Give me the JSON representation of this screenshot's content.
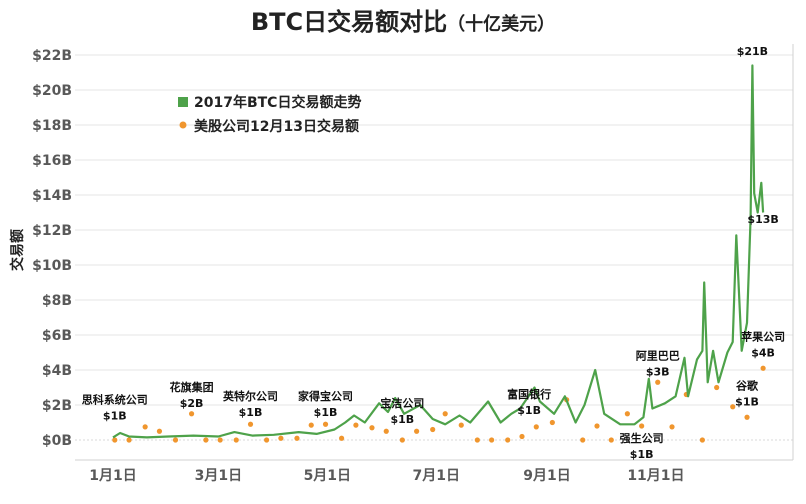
{
  "chart_data": {
    "type": "line",
    "title": "BTC日交易额对比",
    "title_unit": "（十亿美元）",
    "ylabel": "交易额",
    "xlabel": "",
    "ylim": [
      0,
      22
    ],
    "xlim": [
      "2017-01-01",
      "2017-12-31"
    ],
    "grid": true,
    "legend_placement": "top-left",
    "y_ticks": [
      "$0B",
      "$2B",
      "$4B",
      "$6B",
      "$8B",
      "$10B",
      "$12B",
      "$14B",
      "$16B",
      "$18B",
      "$20B",
      "$22B"
    ],
    "x_ticks": [
      {
        "date": "2017-01-01",
        "label": "1月1日"
      },
      {
        "date": "2017-03-01",
        "label": "3月1日"
      },
      {
        "date": "2017-05-01",
        "label": "5月1日"
      },
      {
        "date": "2017-07-01",
        "label": "7月1日"
      },
      {
        "date": "2017-09-01",
        "label": "9月1日"
      },
      {
        "date": "2017-11-01",
        "label": "11月1日"
      }
    ],
    "colors": {
      "btc": "#4ea24a",
      "stocks": "#f0962e",
      "grid": "#e6e6e6",
      "axis": "#d0d0d0"
    },
    "series": [
      {
        "name": "2017年BTC日交易额走势",
        "kind": "line",
        "points": [
          [
            "2017-01-01",
            0.15
          ],
          [
            "2017-01-05",
            0.4
          ],
          [
            "2017-01-10",
            0.2
          ],
          [
            "2017-01-20",
            0.15
          ],
          [
            "2017-02-01",
            0.2
          ],
          [
            "2017-02-15",
            0.25
          ],
          [
            "2017-03-01",
            0.2
          ],
          [
            "2017-03-10",
            0.45
          ],
          [
            "2017-03-20",
            0.25
          ],
          [
            "2017-04-01",
            0.3
          ],
          [
            "2017-04-15",
            0.45
          ],
          [
            "2017-04-25",
            0.35
          ],
          [
            "2017-05-05",
            0.6
          ],
          [
            "2017-05-11",
            1.0
          ],
          [
            "2017-05-16",
            1.4
          ],
          [
            "2017-05-22",
            1.0
          ],
          [
            "2017-05-30",
            2.1
          ],
          [
            "2017-06-04",
            1.6
          ],
          [
            "2017-06-08",
            2.4
          ],
          [
            "2017-06-13",
            1.5
          ],
          [
            "2017-06-22",
            2.0
          ],
          [
            "2017-06-29",
            1.2
          ],
          [
            "2017-07-06",
            0.9
          ],
          [
            "2017-07-14",
            1.4
          ],
          [
            "2017-07-20",
            1.0
          ],
          [
            "2017-07-30",
            2.2
          ],
          [
            "2017-08-06",
            1.0
          ],
          [
            "2017-08-12",
            1.5
          ],
          [
            "2017-08-17",
            1.8
          ],
          [
            "2017-08-25",
            3.0
          ],
          [
            "2017-08-28",
            2.2
          ],
          [
            "2017-09-05",
            1.5
          ],
          [
            "2017-09-11",
            2.5
          ],
          [
            "2017-09-17",
            1.0
          ],
          [
            "2017-09-22",
            2.0
          ],
          [
            "2017-09-28",
            4.0
          ],
          [
            "2017-10-03",
            1.5
          ],
          [
            "2017-10-12",
            0.9
          ],
          [
            "2017-10-20",
            0.9
          ],
          [
            "2017-10-25",
            1.3
          ],
          [
            "2017-10-28",
            3.5
          ],
          [
            "2017-10-30",
            1.8
          ],
          [
            "2017-11-06",
            2.1
          ],
          [
            "2017-11-12",
            2.5
          ],
          [
            "2017-11-17",
            4.7
          ],
          [
            "2017-11-19",
            2.5
          ],
          [
            "2017-11-24",
            4.6
          ],
          [
            "2017-11-27",
            5.1
          ],
          [
            "2017-11-28",
            9.0
          ],
          [
            "2017-11-30",
            3.3
          ],
          [
            "2017-12-03",
            5.1
          ],
          [
            "2017-12-06",
            3.3
          ],
          [
            "2017-12-11",
            5.0
          ],
          [
            "2017-12-14",
            5.6
          ],
          [
            "2017-12-16",
            11.7
          ],
          [
            "2017-12-19",
            5.1
          ],
          [
            "2017-12-22",
            6.7
          ],
          [
            "2017-12-24",
            12.7
          ],
          [
            "2017-12-25",
            21.4
          ],
          [
            "2017-12-26",
            14.1
          ],
          [
            "2017-12-28",
            13.0
          ],
          [
            "2017-12-30",
            14.7
          ],
          [
            "2017-12-31",
            13.0
          ]
        ]
      },
      {
        "name": "美股公司12月13日交易额",
        "kind": "scatter",
        "points": [
          [
            "2017-01-02",
            0
          ],
          [
            "2017-01-10",
            0
          ],
          [
            "2017-01-19",
            0.75
          ],
          [
            "2017-01-27",
            0.5
          ],
          [
            "2017-02-05",
            0
          ],
          [
            "2017-02-14",
            1.5
          ],
          [
            "2017-02-22",
            0
          ],
          [
            "2017-03-02",
            0
          ],
          [
            "2017-03-11",
            0
          ],
          [
            "2017-03-19",
            0.9
          ],
          [
            "2017-03-28",
            0
          ],
          [
            "2017-04-05",
            0.1
          ],
          [
            "2017-04-14",
            0.1
          ],
          [
            "2017-04-22",
            0.85
          ],
          [
            "2017-04-30",
            0.9
          ],
          [
            "2017-05-09",
            0.1
          ],
          [
            "2017-05-17",
            0.85
          ],
          [
            "2017-05-26",
            0.7
          ],
          [
            "2017-06-03",
            0.5
          ],
          [
            "2017-06-12",
            0
          ],
          [
            "2017-06-20",
            0.5
          ],
          [
            "2017-06-29",
            0.6
          ],
          [
            "2017-07-06",
            1.5
          ],
          [
            "2017-07-15",
            0.85
          ],
          [
            "2017-07-24",
            0
          ],
          [
            "2017-08-01",
            0
          ],
          [
            "2017-08-10",
            0
          ],
          [
            "2017-08-18",
            0.2
          ],
          [
            "2017-08-26",
            0.75
          ],
          [
            "2017-09-04",
            1.0
          ],
          [
            "2017-09-12",
            2.3
          ],
          [
            "2017-09-21",
            0
          ],
          [
            "2017-09-29",
            0.8
          ],
          [
            "2017-10-07",
            0
          ],
          [
            "2017-10-16",
            1.5
          ],
          [
            "2017-10-24",
            0.8
          ],
          [
            "2017-11-02",
            3.3
          ],
          [
            "2017-11-10",
            0.75
          ],
          [
            "2017-11-18",
            2.6
          ],
          [
            "2017-11-27",
            0
          ],
          [
            "2017-12-05",
            3.0
          ],
          [
            "2017-12-14",
            1.9
          ],
          [
            "2017-12-22",
            1.3
          ],
          [
            "2017-12-31",
            4.1
          ]
        ]
      }
    ],
    "annotations": [
      {
        "date": "2017-01-02",
        "value": 2.1,
        "name": "思科系统公司",
        "amount": "$1B"
      },
      {
        "date": "2017-02-14",
        "value": 2.8,
        "name": "花旗集团",
        "amount": "$2B"
      },
      {
        "date": "2017-03-19",
        "value": 2.3,
        "name": "英特尔公司",
        "amount": "$1B"
      },
      {
        "date": "2017-04-30",
        "value": 2.3,
        "name": "家得宝公司",
        "amount": "$1B"
      },
      {
        "date": "2017-06-12",
        "value": 1.9,
        "name": "宝洁公司",
        "amount": "$1B"
      },
      {
        "date": "2017-08-22",
        "value": 2.4,
        "name": "富国银行",
        "amount": "$1B"
      },
      {
        "date": "2017-11-02",
        "value": 4.6,
        "name": "阿里巴巴",
        "amount": "$3B"
      },
      {
        "date": "2017-10-24",
        "value": -0.1,
        "name": "强生公司",
        "amount": "$1B"
      },
      {
        "date": "2017-12-22",
        "value": 2.9,
        "name": "谷歌",
        "amount": "$1B"
      },
      {
        "date": "2017-12-31",
        "value": 5.7,
        "name": "苹果公司",
        "amount": "$4B"
      },
      {
        "date": "2017-12-25",
        "value": 22.0,
        "name": "",
        "amount": "$21B"
      },
      {
        "date": "2017-12-31",
        "value": 12.4,
        "name": "",
        "amount": "$13B"
      }
    ]
  }
}
